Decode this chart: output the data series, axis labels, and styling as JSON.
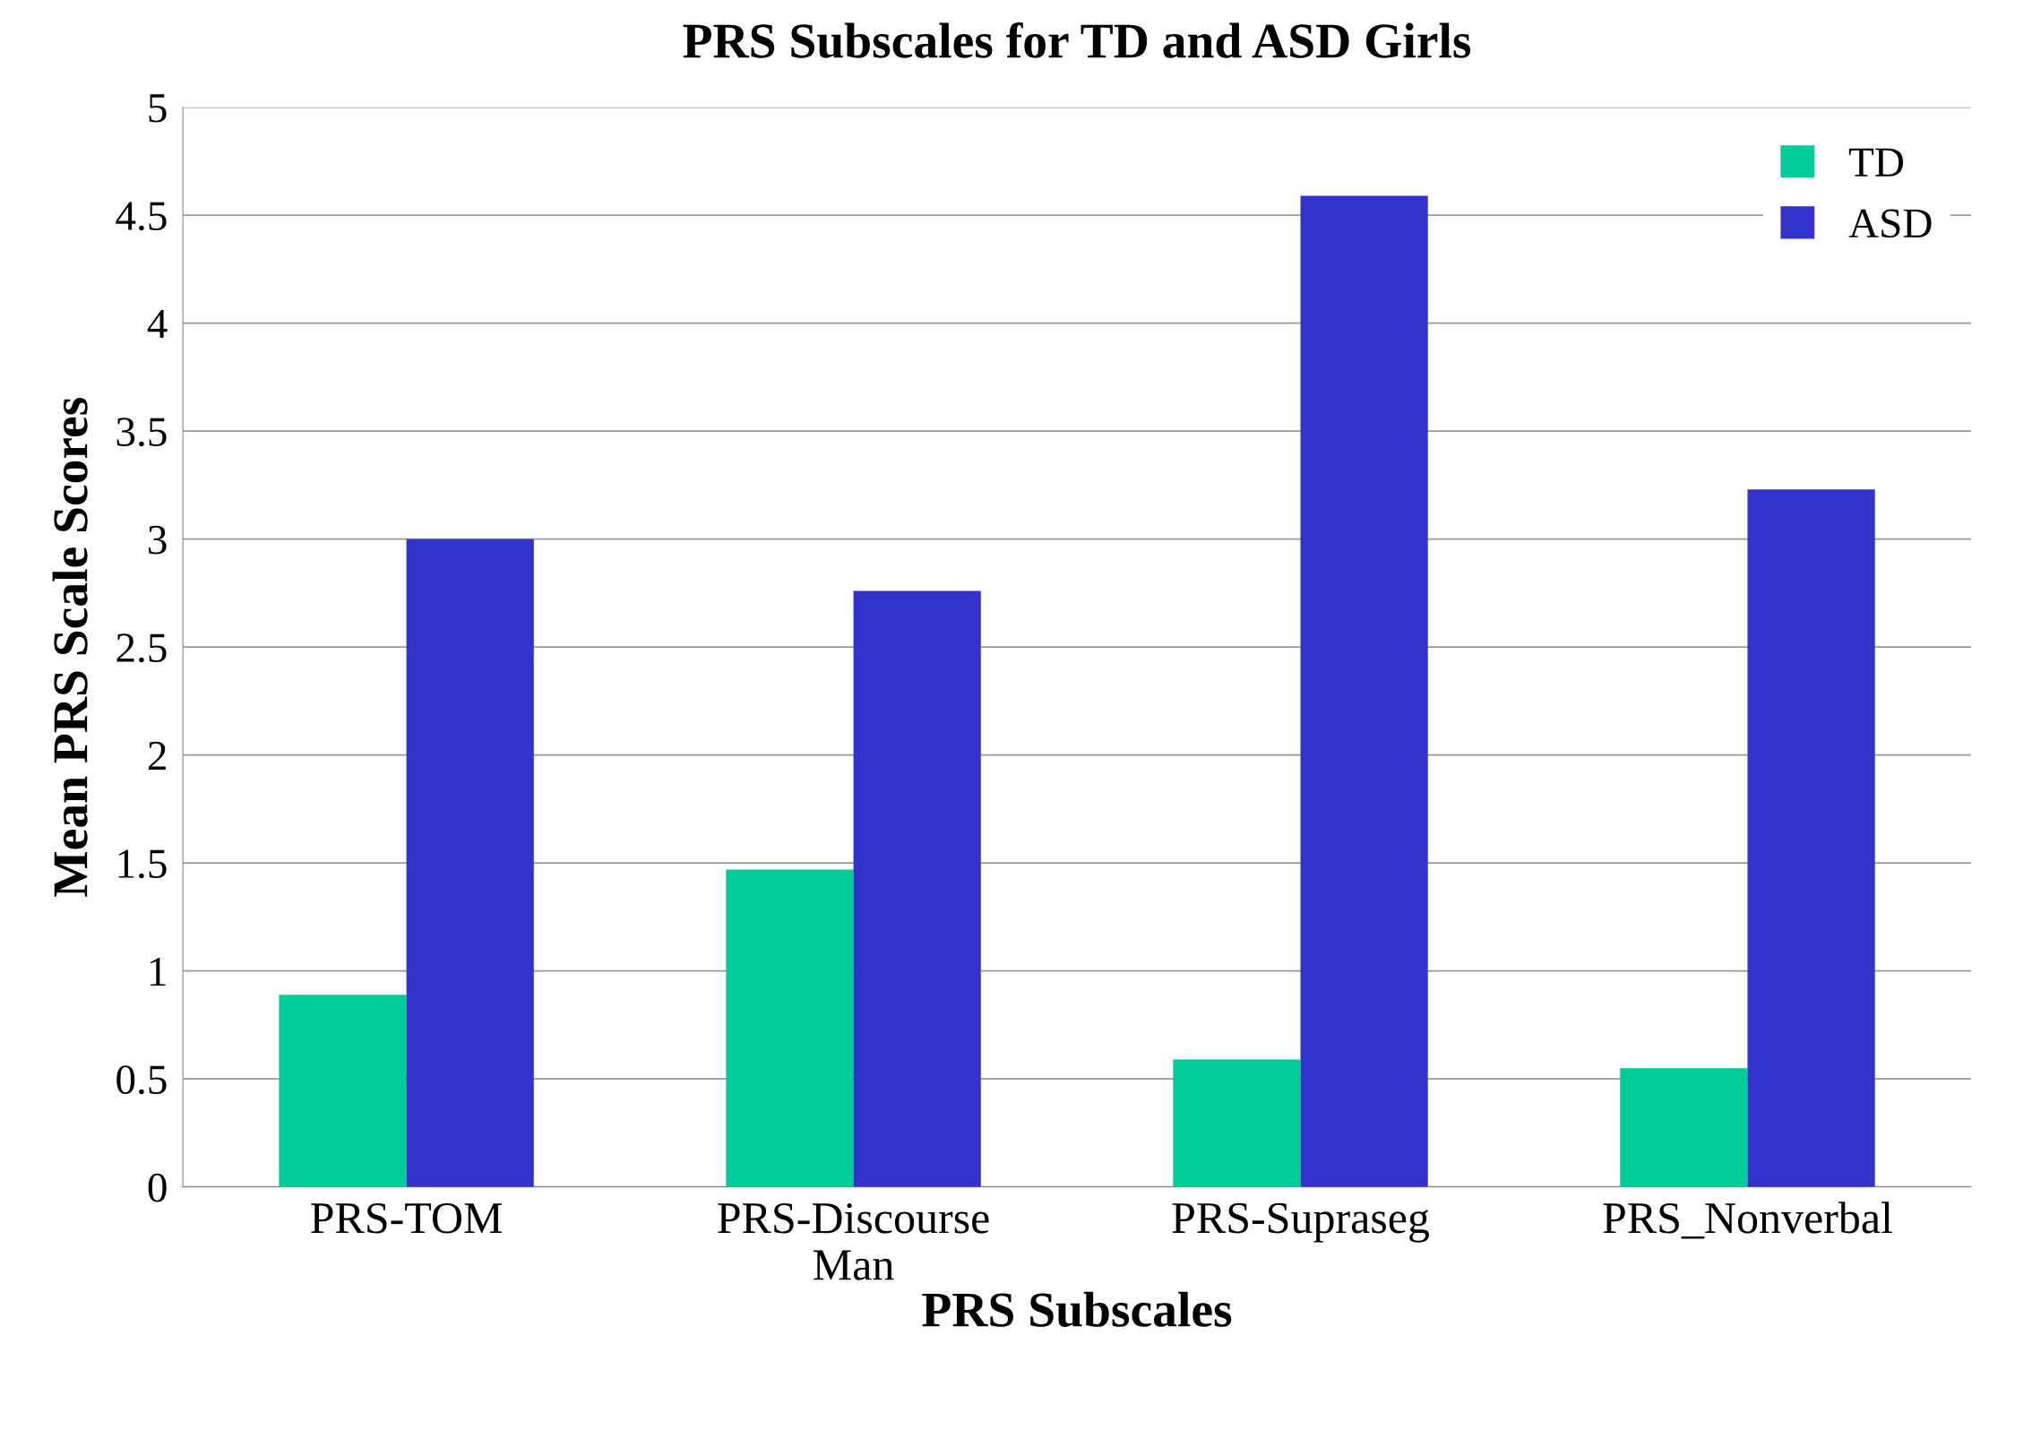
{
  "chart_data": {
    "type": "bar",
    "title": "PRS Subscales for TD and ASD Girls",
    "xlabel": "PRS Subscales",
    "ylabel": "Mean PRS Scale Scores",
    "categories": [
      "PRS-TOM",
      "PRS-Discourse\nMan",
      "PRS-Supraseg",
      "PRS_Nonverbal"
    ],
    "series": [
      {
        "name": "TD",
        "color": "#00cc99",
        "values": [
          0.89,
          1.47,
          0.59,
          0.55
        ]
      },
      {
        "name": "ASD",
        "color": "#3333cc",
        "values": [
          3.0,
          2.76,
          4.59,
          3.23
        ]
      }
    ],
    "ylim": [
      0,
      5
    ],
    "yticks": [
      0,
      0.5,
      1,
      1.5,
      2,
      2.5,
      3,
      3.5,
      4,
      4.5,
      5
    ],
    "grid": "y",
    "legend": "top right"
  }
}
